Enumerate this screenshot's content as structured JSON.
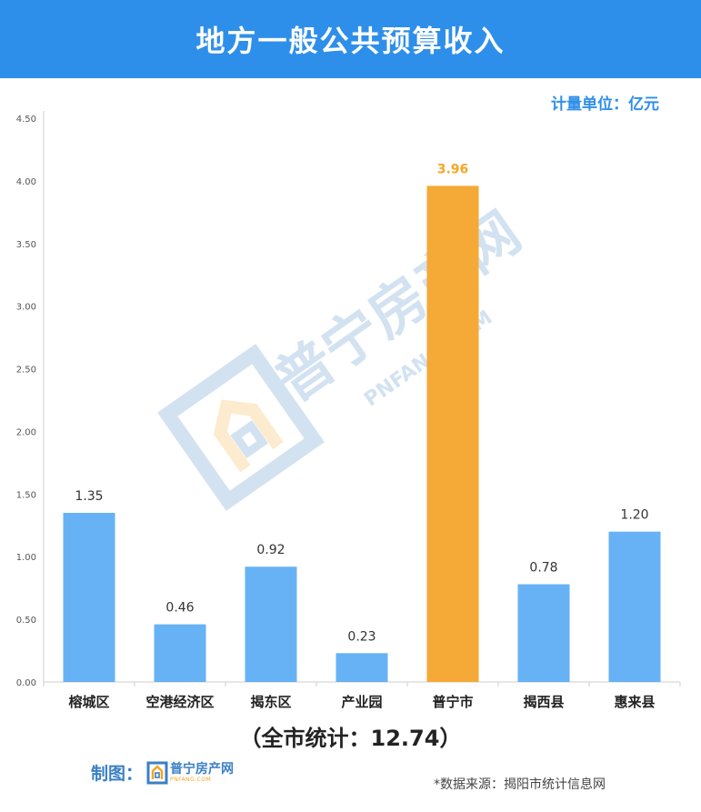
{
  "header": {
    "title": "地方一般公共预算收入"
  },
  "unit_label": "计量单位：亿元",
  "total_text": "（全市统计：12.74）",
  "credit": {
    "label": "制图：",
    "logo_main": "普宁房产网",
    "logo_sub": "PNFANG.COM"
  },
  "source": "*数据来源：揭阳市统计信息网",
  "watermark": {
    "main": "普宁房产网",
    "sub": "PNFANG.COM"
  },
  "colors": {
    "header": "#2E8FEA",
    "bar": "#66B2F5",
    "highlight": "#F5A936",
    "highlight_text": "#F5A623"
  },
  "chart_data": {
    "type": "bar",
    "categories": [
      "榕城区",
      "空港经济区",
      "揭东区",
      "产业园",
      "普宁市",
      "揭西县",
      "惠来县"
    ],
    "values": [
      1.35,
      0.46,
      0.92,
      0.23,
      3.96,
      0.78,
      1.2
    ],
    "value_labels": [
      "1.35",
      "0.46",
      "0.92",
      "0.23",
      "3.96",
      "0.78",
      "1.20"
    ],
    "highlight": "普宁市",
    "ylim": [
      0,
      4.5
    ],
    "yticks": [
      "0.00",
      "0.50",
      "1.00",
      "1.50",
      "2.00",
      "2.50",
      "3.00",
      "3.50",
      "4.00",
      "4.50"
    ],
    "xlabel": "",
    "ylabel": "",
    "grid": false
  }
}
